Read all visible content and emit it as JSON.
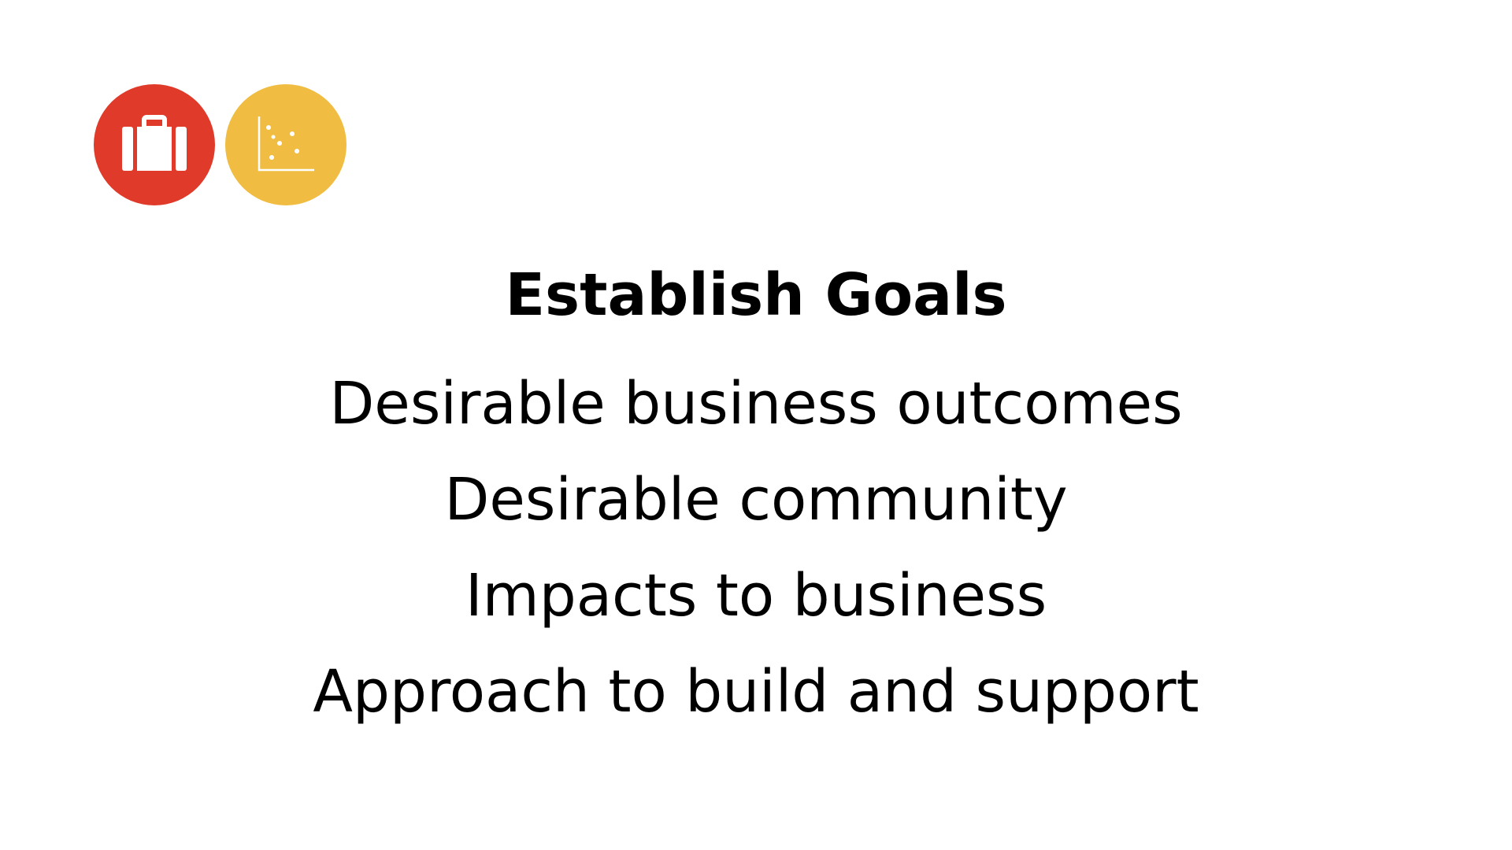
{
  "icons": [
    {
      "name": "briefcase-icon",
      "color": "#E03B2A"
    },
    {
      "name": "scatter-chart-icon",
      "color": "#F0BD42"
    }
  ],
  "slide": {
    "title": "Establish Goals",
    "bullets": [
      "Desirable business outcomes",
      "Desirable community",
      "Impacts to business",
      "Approach to build and support"
    ]
  }
}
